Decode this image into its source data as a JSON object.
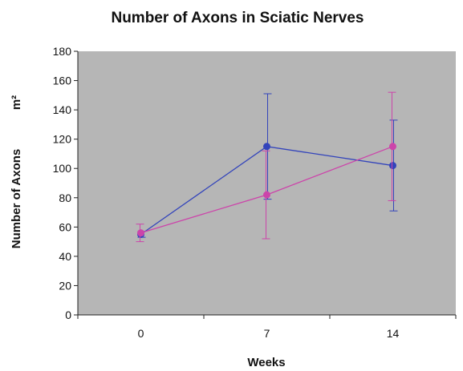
{
  "chart_data": {
    "type": "line",
    "title": "Number of Axons in Sciatic Nerves",
    "xlabel": "Weeks",
    "ylabel": "Number of Axons",
    "ylabel_unit": "m²",
    "categories": [
      "0",
      "7",
      "14"
    ],
    "x": [
      0,
      7,
      14
    ],
    "ylim": [
      0,
      180
    ],
    "yticks": [
      0,
      20,
      40,
      60,
      80,
      100,
      120,
      140,
      160,
      180
    ],
    "grid": false,
    "legend": "none",
    "plot_background": "#b6b6b6",
    "series": [
      {
        "color": "#3344bb",
        "values": [
          55,
          115,
          102
        ],
        "error": [
          2,
          36,
          31
        ]
      },
      {
        "color": "#cc44aa",
        "values": [
          56,
          82,
          115
        ],
        "error": [
          6,
          30,
          37
        ]
      }
    ]
  }
}
